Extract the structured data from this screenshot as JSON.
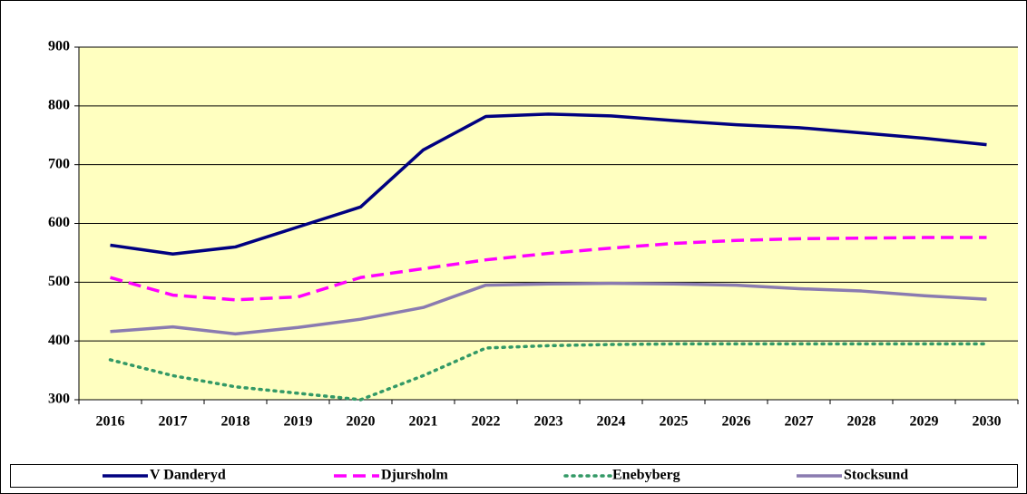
{
  "chart_data": {
    "type": "line",
    "categories": [
      "2016",
      "2017",
      "2018",
      "2019",
      "2020",
      "2021",
      "2022",
      "2023",
      "2024",
      "2025",
      "2026",
      "2027",
      "2028",
      "2029",
      "2030"
    ],
    "series": [
      {
        "name": "V Danderyd",
        "color": "#000080",
        "style": "solid",
        "values": [
          563,
          548,
          560,
          594,
          628,
          725,
          782,
          786,
          783,
          775,
          768,
          763,
          754,
          745,
          734
        ]
      },
      {
        "name": "Djursholm",
        "color": "#ff00ff",
        "style": "dashed",
        "values": [
          508,
          478,
          470,
          475,
          508,
          523,
          538,
          549,
          558,
          566,
          571,
          574,
          575,
          576,
          576
        ]
      },
      {
        "name": "Enebyberg",
        "color": "#339966",
        "style": "dotted",
        "values": [
          368,
          341,
          322,
          311,
          300,
          341,
          388,
          392,
          394,
          395,
          395,
          395,
          395,
          395,
          395
        ]
      },
      {
        "name": "Stocksund",
        "color": "#8a7bb0",
        "style": "solid",
        "values": [
          416,
          424,
          412,
          423,
          437,
          457,
          495,
          497,
          498,
          497,
          495,
          489,
          485,
          477,
          471
        ]
      }
    ],
    "ylim": [
      300,
      900
    ],
    "yticks": [
      300,
      400,
      500,
      600,
      700,
      800,
      900
    ],
    "grid": true,
    "legend": "bottom"
  }
}
